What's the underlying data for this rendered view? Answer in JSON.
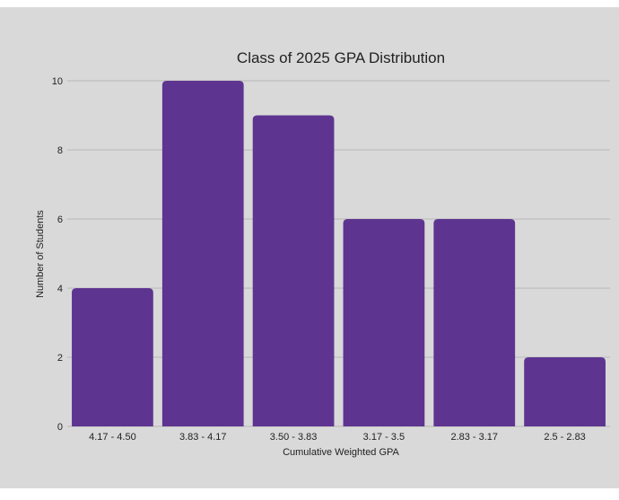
{
  "chart_data": {
    "type": "bar",
    "title": "Class of 2025 GPA Distribution",
    "xlabel": "Cumulative Weighted GPA",
    "ylabel": "Number of Students",
    "categories": [
      "4.17 - 4.50",
      "3.83 - 4.17",
      "3.50 - 3.83",
      "3.17 - 3.5",
      "2.83 - 3.17",
      "2.5 - 2.83"
    ],
    "values": [
      4,
      10,
      9,
      6,
      6,
      2
    ],
    "ylim": [
      0,
      10
    ],
    "yticks": [
      "0",
      "2",
      "4",
      "6",
      "8",
      "10"
    ],
    "grid": true,
    "colors": {
      "bar": "#5e3491",
      "background": "#d9d9d9",
      "grid": "#b8b8b8",
      "text": "#222222"
    }
  }
}
